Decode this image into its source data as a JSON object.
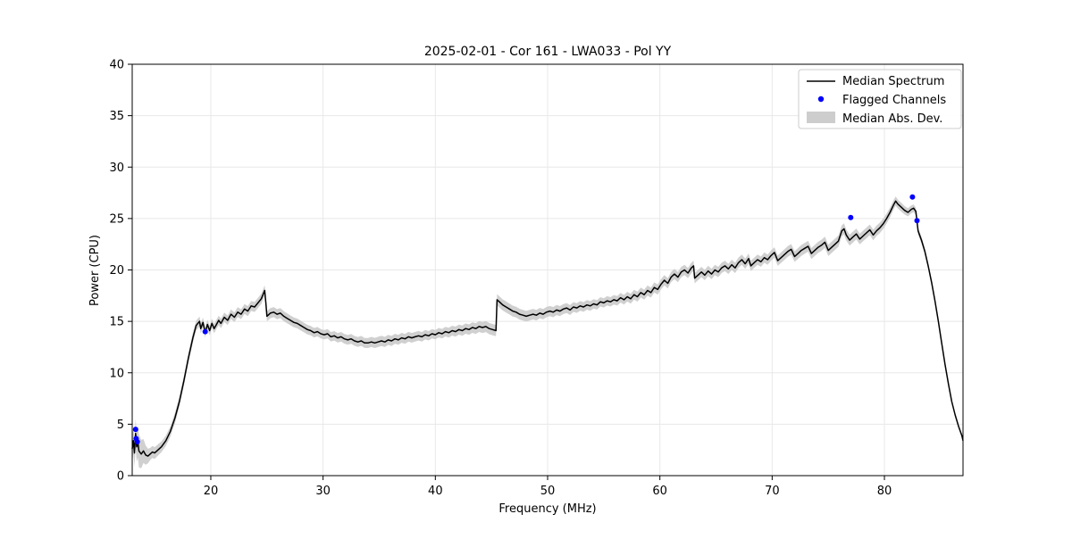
{
  "chart_data": {
    "type": "line",
    "title": "2025-02-01 - Cor 161 - LWA033 - Pol YY",
    "xlabel": "Frequency (MHz)",
    "ylabel": "Power (CPU)",
    "xlim": [
      13,
      87
    ],
    "ylim": [
      0,
      40
    ],
    "xticks": [
      20,
      30,
      40,
      50,
      60,
      70,
      80
    ],
    "yticks": [
      0,
      5,
      10,
      15,
      20,
      25,
      30,
      35,
      40
    ],
    "grid": true,
    "legend": [
      "Median Spectrum",
      "Flagged Channels",
      "Median Abs. Dev."
    ],
    "legend_position": "upper right",
    "colors": {
      "line": "#000000",
      "flagged": "#0000ff",
      "band": "#c8c8c8",
      "grid": "#e8e8e8"
    },
    "median": [
      [
        13.0,
        2.6
      ],
      [
        13.1,
        3.4
      ],
      [
        13.2,
        2.2
      ],
      [
        13.3,
        4.1
      ],
      [
        13.4,
        2.8
      ],
      [
        13.5,
        3.3
      ],
      [
        13.6,
        2.4
      ],
      [
        13.8,
        2.1
      ],
      [
        14.0,
        2.4
      ],
      [
        14.2,
        2.0
      ],
      [
        14.4,
        1.9
      ],
      [
        14.6,
        2.1
      ],
      [
        14.8,
        2.3
      ],
      [
        15.0,
        2.2
      ],
      [
        15.3,
        2.5
      ],
      [
        15.6,
        2.8
      ],
      [
        16.0,
        3.4
      ],
      [
        16.4,
        4.3
      ],
      [
        16.8,
        5.6
      ],
      [
        17.2,
        7.2
      ],
      [
        17.6,
        9.2
      ],
      [
        18.0,
        11.4
      ],
      [
        18.4,
        13.4
      ],
      [
        18.7,
        14.6
      ],
      [
        19.0,
        15.0
      ],
      [
        19.1,
        14.3
      ],
      [
        19.3,
        14.9
      ],
      [
        19.5,
        13.9
      ],
      [
        19.7,
        14.7
      ],
      [
        19.9,
        14.1
      ],
      [
        20.1,
        14.8
      ],
      [
        20.3,
        14.3
      ],
      [
        20.5,
        14.7
      ],
      [
        20.7,
        15.1
      ],
      [
        20.9,
        14.8
      ],
      [
        21.2,
        15.4
      ],
      [
        21.5,
        15.1
      ],
      [
        21.8,
        15.7
      ],
      [
        22.1,
        15.4
      ],
      [
        22.4,
        15.9
      ],
      [
        22.7,
        15.7
      ],
      [
        23.0,
        16.2
      ],
      [
        23.3,
        16.0
      ],
      [
        23.6,
        16.5
      ],
      [
        23.9,
        16.4
      ],
      [
        24.2,
        16.8
      ],
      [
        24.5,
        17.2
      ],
      [
        24.8,
        18.0
      ],
      [
        24.9,
        16.8
      ],
      [
        25.0,
        15.5
      ],
      [
        25.3,
        15.8
      ],
      [
        25.6,
        15.9
      ],
      [
        25.9,
        15.7
      ],
      [
        26.2,
        15.8
      ],
      [
        26.5,
        15.5
      ],
      [
        26.8,
        15.3
      ],
      [
        27.1,
        15.1
      ],
      [
        27.4,
        14.9
      ],
      [
        27.7,
        14.8
      ],
      [
        28.0,
        14.6
      ],
      [
        28.3,
        14.4
      ],
      [
        28.6,
        14.2
      ],
      [
        28.9,
        14.1
      ],
      [
        29.2,
        13.9
      ],
      [
        29.5,
        14.0
      ],
      [
        29.8,
        13.8
      ],
      [
        30.1,
        13.7
      ],
      [
        30.4,
        13.8
      ],
      [
        30.7,
        13.5
      ],
      [
        31.0,
        13.6
      ],
      [
        31.3,
        13.4
      ],
      [
        31.6,
        13.5
      ],
      [
        31.9,
        13.3
      ],
      [
        32.2,
        13.2
      ],
      [
        32.5,
        13.3
      ],
      [
        32.8,
        13.1
      ],
      [
        33.1,
        13.0
      ],
      [
        33.4,
        13.1
      ],
      [
        33.7,
        12.9
      ],
      [
        34.0,
        12.9
      ],
      [
        34.3,
        13.0
      ],
      [
        34.6,
        12.9
      ],
      [
        34.9,
        13.0
      ],
      [
        35.2,
        13.1
      ],
      [
        35.5,
        13.0
      ],
      [
        35.8,
        13.2
      ],
      [
        36.1,
        13.1
      ],
      [
        36.4,
        13.3
      ],
      [
        36.7,
        13.2
      ],
      [
        37.0,
        13.4
      ],
      [
        37.3,
        13.3
      ],
      [
        37.6,
        13.5
      ],
      [
        37.9,
        13.4
      ],
      [
        38.2,
        13.5
      ],
      [
        38.5,
        13.6
      ],
      [
        38.8,
        13.5
      ],
      [
        39.1,
        13.7
      ],
      [
        39.4,
        13.6
      ],
      [
        39.7,
        13.8
      ],
      [
        40.0,
        13.7
      ],
      [
        40.3,
        13.9
      ],
      [
        40.6,
        13.8
      ],
      [
        40.9,
        14.0
      ],
      [
        41.2,
        13.9
      ],
      [
        41.5,
        14.1
      ],
      [
        41.8,
        14.0
      ],
      [
        42.1,
        14.2
      ],
      [
        42.4,
        14.1
      ],
      [
        42.7,
        14.3
      ],
      [
        43.0,
        14.2
      ],
      [
        43.3,
        14.4
      ],
      [
        43.6,
        14.3
      ],
      [
        43.9,
        14.5
      ],
      [
        44.2,
        14.4
      ],
      [
        44.5,
        14.5
      ],
      [
        44.8,
        14.3
      ],
      [
        45.1,
        14.2
      ],
      [
        45.4,
        14.1
      ],
      [
        45.5,
        17.1
      ],
      [
        45.7,
        16.9
      ],
      [
        46.0,
        16.6
      ],
      [
        46.3,
        16.4
      ],
      [
        46.6,
        16.2
      ],
      [
        46.9,
        16.0
      ],
      [
        47.2,
        15.9
      ],
      [
        47.5,
        15.7
      ],
      [
        47.8,
        15.6
      ],
      [
        48.1,
        15.5
      ],
      [
        48.4,
        15.6
      ],
      [
        48.7,
        15.7
      ],
      [
        49.0,
        15.6
      ],
      [
        49.3,
        15.8
      ],
      [
        49.6,
        15.7
      ],
      [
        49.9,
        15.9
      ],
      [
        50.2,
        16.0
      ],
      [
        50.5,
        15.9
      ],
      [
        50.8,
        16.1
      ],
      [
        51.1,
        16.0
      ],
      [
        51.4,
        16.2
      ],
      [
        51.7,
        16.3
      ],
      [
        52.0,
        16.1
      ],
      [
        52.3,
        16.4
      ],
      [
        52.6,
        16.3
      ],
      [
        52.9,
        16.5
      ],
      [
        53.2,
        16.4
      ],
      [
        53.5,
        16.6
      ],
      [
        53.8,
        16.5
      ],
      [
        54.1,
        16.7
      ],
      [
        54.4,
        16.6
      ],
      [
        54.7,
        16.9
      ],
      [
        55.0,
        16.8
      ],
      [
        55.3,
        17.0
      ],
      [
        55.6,
        16.9
      ],
      [
        55.9,
        17.1
      ],
      [
        56.2,
        17.0
      ],
      [
        56.5,
        17.3
      ],
      [
        56.8,
        17.1
      ],
      [
        57.1,
        17.4
      ],
      [
        57.4,
        17.2
      ],
      [
        57.7,
        17.6
      ],
      [
        58.0,
        17.4
      ],
      [
        58.3,
        17.8
      ],
      [
        58.6,
        17.6
      ],
      [
        58.9,
        18.0
      ],
      [
        59.2,
        17.8
      ],
      [
        59.5,
        18.3
      ],
      [
        59.8,
        18.1
      ],
      [
        60.1,
        18.6
      ],
      [
        60.4,
        19.0
      ],
      [
        60.7,
        18.7
      ],
      [
        61.0,
        19.3
      ],
      [
        61.3,
        19.6
      ],
      [
        61.6,
        19.3
      ],
      [
        61.9,
        19.8
      ],
      [
        62.2,
        20.0
      ],
      [
        62.5,
        19.7
      ],
      [
        62.8,
        20.2
      ],
      [
        63.0,
        20.4
      ],
      [
        63.1,
        19.2
      ],
      [
        63.4,
        19.5
      ],
      [
        63.7,
        19.8
      ],
      [
        64.0,
        19.5
      ],
      [
        64.3,
        19.9
      ],
      [
        64.6,
        19.6
      ],
      [
        64.9,
        20.0
      ],
      [
        65.2,
        19.8
      ],
      [
        65.5,
        20.2
      ],
      [
        65.8,
        20.4
      ],
      [
        66.1,
        20.1
      ],
      [
        66.4,
        20.5
      ],
      [
        66.7,
        20.2
      ],
      [
        67.0,
        20.7
      ],
      [
        67.3,
        21.0
      ],
      [
        67.6,
        20.6
      ],
      [
        67.9,
        21.1
      ],
      [
        68.1,
        20.4
      ],
      [
        68.4,
        20.7
      ],
      [
        68.7,
        21.0
      ],
      [
        69.0,
        20.8
      ],
      [
        69.3,
        21.2
      ],
      [
        69.6,
        21.0
      ],
      [
        69.9,
        21.4
      ],
      [
        70.2,
        21.7
      ],
      [
        70.5,
        20.9
      ],
      [
        70.8,
        21.2
      ],
      [
        71.1,
        21.5
      ],
      [
        71.4,
        21.8
      ],
      [
        71.7,
        22.0
      ],
      [
        72.0,
        21.3
      ],
      [
        72.3,
        21.6
      ],
      [
        72.6,
        21.9
      ],
      [
        72.9,
        22.1
      ],
      [
        73.2,
        22.3
      ],
      [
        73.5,
        21.6
      ],
      [
        73.8,
        21.9
      ],
      [
        74.1,
        22.2
      ],
      [
        74.4,
        22.4
      ],
      [
        74.7,
        22.7
      ],
      [
        75.0,
        21.9
      ],
      [
        75.3,
        22.2
      ],
      [
        75.6,
        22.5
      ],
      [
        75.9,
        22.8
      ],
      [
        76.2,
        23.8
      ],
      [
        76.4,
        24.0
      ],
      [
        76.6,
        23.4
      ],
      [
        76.9,
        22.9
      ],
      [
        77.2,
        23.2
      ],
      [
        77.5,
        23.5
      ],
      [
        77.8,
        23.0
      ],
      [
        78.1,
        23.3
      ],
      [
        78.4,
        23.6
      ],
      [
        78.7,
        23.9
      ],
      [
        79.0,
        23.4
      ],
      [
        79.3,
        23.8
      ],
      [
        79.6,
        24.1
      ],
      [
        79.9,
        24.5
      ],
      [
        80.2,
        25.0
      ],
      [
        80.5,
        25.6
      ],
      [
        80.8,
        26.3
      ],
      [
        81.0,
        26.7
      ],
      [
        81.2,
        26.4
      ],
      [
        81.5,
        26.1
      ],
      [
        81.8,
        25.8
      ],
      [
        82.1,
        25.6
      ],
      [
        82.4,
        25.9
      ],
      [
        82.6,
        26.0
      ],
      [
        82.8,
        25.7
      ],
      [
        83.0,
        23.8
      ],
      [
        83.3,
        22.9
      ],
      [
        83.6,
        21.8
      ],
      [
        83.9,
        20.4
      ],
      [
        84.2,
        18.8
      ],
      [
        84.5,
        17.0
      ],
      [
        84.8,
        15.0
      ],
      [
        85.1,
        12.9
      ],
      [
        85.4,
        10.8
      ],
      [
        85.7,
        8.9
      ],
      [
        86.0,
        7.2
      ],
      [
        86.3,
        5.9
      ],
      [
        86.6,
        4.8
      ],
      [
        86.9,
        3.9
      ],
      [
        87.0,
        3.4
      ]
    ],
    "flagged": [
      [
        13.3,
        4.5
      ],
      [
        13.35,
        3.6
      ],
      [
        13.45,
        3.3
      ],
      [
        19.5,
        14.0
      ],
      [
        77.0,
        25.1
      ],
      [
        82.5,
        27.1
      ],
      [
        82.9,
        24.8
      ]
    ],
    "mad_band": [
      [
        13,
        1.2
      ],
      [
        13.6,
        1.6
      ],
      [
        14.5,
        0.6
      ],
      [
        16,
        0.5
      ],
      [
        18,
        0.5
      ],
      [
        20,
        0.45
      ],
      [
        25,
        0.5
      ],
      [
        30,
        0.45
      ],
      [
        35,
        0.5
      ],
      [
        40,
        0.45
      ],
      [
        45,
        0.55
      ],
      [
        50,
        0.5
      ],
      [
        55,
        0.45
      ],
      [
        60,
        0.5
      ],
      [
        65,
        0.5
      ],
      [
        70,
        0.5
      ],
      [
        75,
        0.55
      ],
      [
        80,
        0.5
      ],
      [
        82,
        0.4
      ],
      [
        84,
        0.3
      ],
      [
        87,
        0.15
      ]
    ]
  }
}
